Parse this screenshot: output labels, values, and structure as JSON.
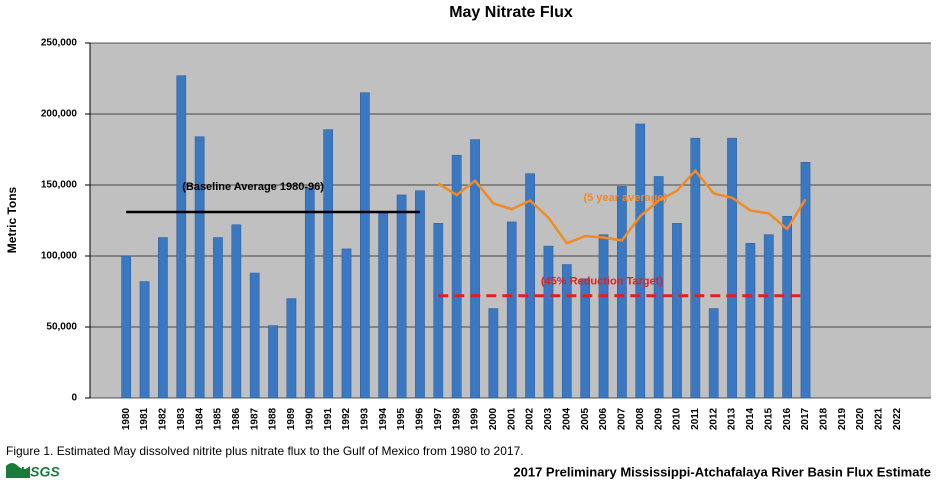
{
  "chart_data": {
    "type": "bar",
    "title": "May Nitrate Flux",
    "ylabel": "Metric Tons",
    "categories": [
      "1980",
      "1981",
      "1982",
      "1983",
      "1984",
      "1985",
      "1986",
      "1987",
      "1988",
      "1989",
      "1990",
      "1991",
      "1992",
      "1993",
      "1994",
      "1995",
      "1996",
      "1997",
      "1998",
      "1999",
      "2000",
      "2001",
      "2002",
      "2003",
      "2004",
      "2005",
      "2006",
      "2007",
      "2008",
      "2009",
      "2010",
      "2011",
      "2012",
      "2013",
      "2014",
      "2015",
      "2016",
      "2017",
      "2018",
      "2019",
      "2020",
      "2021",
      "2022"
    ],
    "series": [
      {
        "type": "bar",
        "color": "#3a78c2",
        "values": [
          100000,
          82000,
          113000,
          227000,
          184000,
          113000,
          122000,
          88000,
          51000,
          70000,
          148000,
          189000,
          105000,
          215000,
          130000,
          143000,
          146000,
          123000,
          171000,
          182000,
          63000,
          124000,
          158000,
          107000,
          94000,
          84000,
          115000,
          149000,
          193000,
          156000,
          123000,
          183000,
          63000,
          183000,
          109000,
          115000,
          128000,
          166000,
          null,
          null,
          null,
          null,
          null
        ]
      },
      {
        "type": "line",
        "label": "(5 year average)",
        "color": "#f08a24",
        "values": [
          null,
          null,
          null,
          null,
          null,
          null,
          null,
          null,
          null,
          null,
          null,
          null,
          null,
          null,
          null,
          null,
          null,
          151000,
          143000,
          153000,
          137000,
          133000,
          139000,
          127000,
          109000,
          114000,
          113000,
          111000,
          128000,
          139000,
          146000,
          160000,
          144000,
          141000,
          132000,
          130000,
          119000,
          140000,
          null,
          null,
          null,
          null,
          null
        ]
      }
    ],
    "reference_lines": [
      {
        "label": "(Baseline Average 1980-96)",
        "value": 131000,
        "start": "1980",
        "end": "1996",
        "color": "#000000",
        "dashed": false
      },
      {
        "label": "(45% Reduction Target)",
        "value": 72000,
        "start": "1997",
        "end": "2017",
        "color": "#e02020",
        "dashed": true
      }
    ],
    "ylim": [
      0,
      250000
    ],
    "yticks": [
      0,
      {
        "value": 50000,
        "label": "50,000"
      },
      {
        "value": 100000,
        "label": "100,000"
      },
      {
        "value": 150000,
        "label": "150,000"
      },
      {
        "value": 200000,
        "label": "200,000"
      },
      {
        "value": 250000,
        "label": "250,000"
      }
    ],
    "grid": true
  },
  "caption": "Figure 1. Estimated May dissolved nitrite plus nitrate flux to the Gulf of Mexico from 1980 to 2017.",
  "footer": "2017 Preliminary Mississippi-Atchafalaya River Basin Flux Estimate",
  "logo": "USGS"
}
